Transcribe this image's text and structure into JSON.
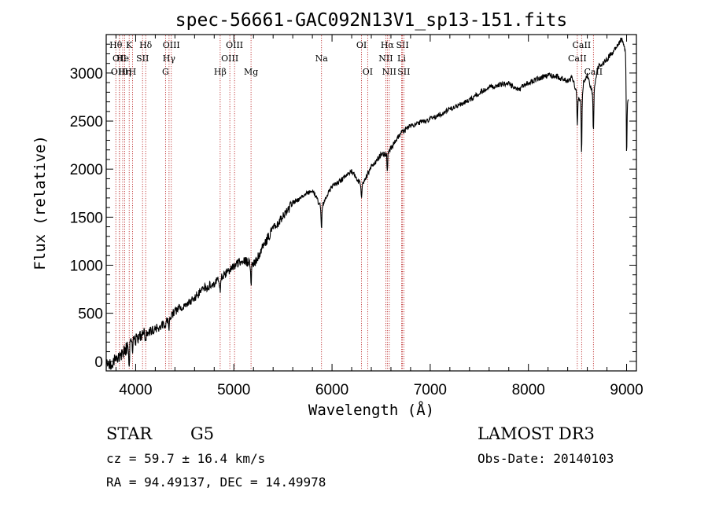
{
  "chart_data": {
    "type": "line",
    "title": "spec-56661-GAC092N13V1_sp13-151.fits",
    "xlabel": "Wavelength (Å)",
    "ylabel": "Flux (relative)",
    "xlim": [
      3700,
      9100
    ],
    "ylim": [
      -100,
      3400
    ],
    "x_ticks": [
      4000,
      5000,
      6000,
      7000,
      8000,
      9000
    ],
    "y_ticks": [
      0,
      500,
      1000,
      1500,
      2000,
      2500,
      3000
    ],
    "spectrum_anchors": {
      "x": [
        3700,
        3750,
        3850,
        3950,
        4050,
        4150,
        4300,
        4400,
        4550,
        4700,
        4861,
        5000,
        5100,
        5200,
        5300,
        5400,
        5500,
        5600,
        5800,
        5890,
        6000,
        6100,
        6200,
        6300,
        6400,
        6500,
        6563,
        6700,
        6800,
        7000,
        7200,
        7400,
        7500,
        7600,
        7700,
        7800,
        7900,
        8000,
        8100,
        8200,
        8300,
        8400,
        8450,
        8498,
        8542,
        8560,
        8600,
        8662,
        8700,
        8800,
        8900,
        8950,
        8990,
        9000
      ],
      "y": [
        -50,
        -20,
        60,
        180,
        270,
        310,
        390,
        520,
        620,
        760,
        850,
        1000,
        1050,
        1000,
        1200,
        1380,
        1500,
        1650,
        1780,
        1600,
        1820,
        1890,
        1980,
        1830,
        2020,
        2150,
        2160,
        2370,
        2450,
        2520,
        2620,
        2720,
        2790,
        2850,
        2880,
        2890,
        2830,
        2900,
        2940,
        2980,
        2960,
        2920,
        2950,
        2750,
        2700,
        2900,
        2980,
        2750,
        3050,
        3140,
        3270,
        3360,
        3200,
        2700
      ]
    },
    "absorption_features": [
      {
        "x": 3934,
        "depth": 180
      },
      {
        "x": 3968,
        "depth": 150
      },
      {
        "x": 4102,
        "depth": 80
      },
      {
        "x": 4340,
        "depth": 120
      },
      {
        "x": 4861,
        "depth": 150
      },
      {
        "x": 5175,
        "depth": 220
      },
      {
        "x": 5893,
        "depth": 270
      },
      {
        "x": 6300,
        "depth": 120
      },
      {
        "x": 6563,
        "depth": 200
      },
      {
        "x": 8498,
        "depth": 280
      },
      {
        "x": 8542,
        "depth": 560
      },
      {
        "x": 8662,
        "depth": 380
      },
      {
        "x": 9000,
        "depth": 600
      }
    ],
    "line_markers": [
      {
        "x": 3798,
        "label": "Hθ",
        "row": 0
      },
      {
        "x": 3835,
        "label": "OII",
        "row": 1
      },
      {
        "x": 3835,
        "label": "OIII",
        "row": 2
      },
      {
        "x": 3868,
        "label": "He",
        "row": 1
      },
      {
        "x": 3889,
        "label": "Hη",
        "row": 2
      },
      {
        "x": 3934,
        "label": "K",
        "row": 0
      },
      {
        "x": 3968,
        "label": "H",
        "row": 2
      },
      {
        "x": 4070,
        "label": "SII",
        "row": 1
      },
      {
        "x": 4102,
        "label": "Hδ",
        "row": 0
      },
      {
        "x": 4304,
        "label": "G",
        "row": 2
      },
      {
        "x": 4340,
        "label": "Hγ",
        "row": 1
      },
      {
        "x": 4363,
        "label": "OIII",
        "row": 0
      },
      {
        "x": 4861,
        "label": "Hβ",
        "row": 2
      },
      {
        "x": 4959,
        "label": "OIII",
        "row": 1
      },
      {
        "x": 5007,
        "label": "OIII",
        "row": 0
      },
      {
        "x": 5175,
        "label": "Mg",
        "row": 2
      },
      {
        "x": 5893,
        "label": "Na",
        "row": 1
      },
      {
        "x": 6300,
        "label": "OI",
        "row": 0
      },
      {
        "x": 6363,
        "label": "OI",
        "row": 2
      },
      {
        "x": 6548,
        "label": "NII",
        "row": 1
      },
      {
        "x": 6563,
        "label": "Hα",
        "row": 0
      },
      {
        "x": 6583,
        "label": "NII",
        "row": 2
      },
      {
        "x": 6708,
        "label": "Li",
        "row": 1
      },
      {
        "x": 6717,
        "label": "SII",
        "row": 0
      },
      {
        "x": 6731,
        "label": "SII",
        "row": 2
      },
      {
        "x": 8498,
        "label": "CaII",
        "row": 1
      },
      {
        "x": 8542,
        "label": "CaII",
        "row": 0
      },
      {
        "x": 8662,
        "label": "CaII",
        "row": 2
      }
    ]
  },
  "info": {
    "object_class": "STAR",
    "subclass": "G5",
    "survey": "LAMOST DR3",
    "redshift": "cz = 59.7 ± 16.4 km/s",
    "obs_date": "Obs-Date: 20140103",
    "coords": "RA =  94.49137, DEC =  14.49978"
  }
}
